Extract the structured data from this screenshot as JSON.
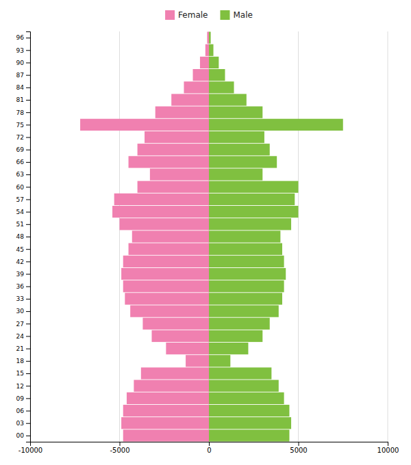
{
  "chart_data": {
    "type": "bar",
    "orientation": "horizontal",
    "categories": [
      96,
      93,
      90,
      87,
      84,
      81,
      78,
      75,
      72,
      69,
      66,
      63,
      60,
      57,
      54,
      51,
      48,
      45,
      42,
      39,
      36,
      33,
      30,
      27,
      24,
      21,
      18,
      15,
      12,
      9,
      6,
      3,
      0
    ],
    "series": [
      {
        "name": "Female",
        "color": "#f080b0",
        "values": [
          -100,
          -200,
          -500,
          -900,
          -1400,
          -2100,
          -3000,
          -7200,
          -3600,
          -4000,
          -4500,
          -3300,
          -4000,
          -5300,
          -5400,
          -5000,
          -4300,
          -4500,
          -4800,
          -4900,
          -4800,
          -4700,
          -4400,
          -3700,
          -3200,
          -2400,
          -1300,
          -3800,
          -4200,
          -4600,
          -4800,
          -4900,
          -4800
        ]
      },
      {
        "name": "Male",
        "color": "#80c040",
        "values": [
          100,
          250,
          550,
          900,
          1400,
          2100,
          3000,
          7500,
          3100,
          3400,
          3800,
          3000,
          5000,
          4800,
          5000,
          4600,
          4000,
          4100,
          4200,
          4300,
          4200,
          4100,
          3900,
          3400,
          3000,
          2200,
          1200,
          3500,
          3900,
          4200,
          4500,
          4600,
          4500
        ]
      }
    ],
    "xlim": [
      -10000,
      10000
    ],
    "xticks": [
      -10000,
      -5000,
      0,
      5000,
      10000
    ],
    "ylim": [
      -1.5,
      97.5
    ],
    "yticks": [
      96,
      93,
      90,
      87,
      84,
      81,
      78,
      75,
      72,
      69,
      66,
      63,
      60,
      57,
      54,
      51,
      48,
      45,
      42,
      39,
      36,
      33,
      30,
      27,
      24,
      21,
      18,
      15,
      12,
      {
        "value": 9,
        "label": "09"
      },
      {
        "value": 6,
        "label": "06"
      },
      {
        "value": 3,
        "label": "03"
      },
      {
        "value": 0,
        "label": "00"
      }
    ],
    "grid": true,
    "legend": "top"
  }
}
